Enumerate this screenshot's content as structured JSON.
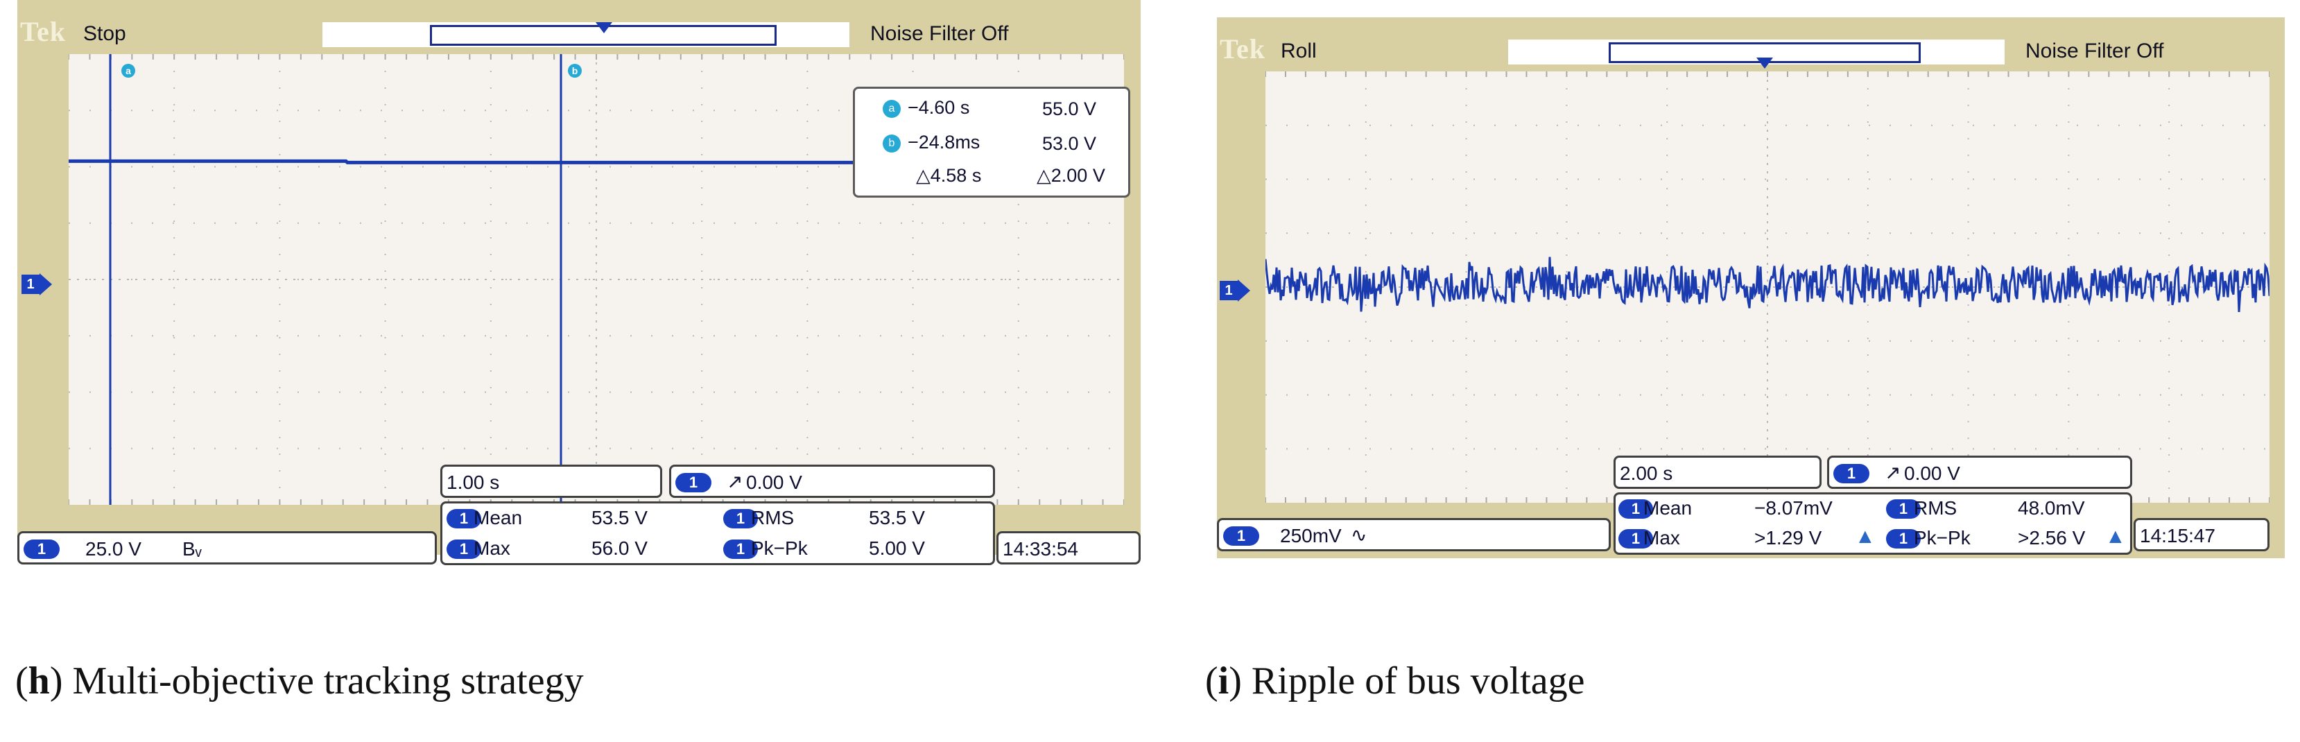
{
  "colors": {
    "bezel": "#d8d0a2",
    "screen_bg": "#f6f3ef",
    "trace": "#1a3ab0",
    "cursor_tag": "#27a9d6",
    "channel_badge": "#1a40c0"
  },
  "figure_h": {
    "caption_letter": "h",
    "caption_text": " Multi-objective tracking strategy",
    "logo": "Tek",
    "run_state": "Stop",
    "noise_filter": "Noise Filter Off",
    "channel_marker": "1",
    "cursors": {
      "a_tag": "a",
      "b_tag": "b",
      "a_time": "−4.60 s",
      "a_voltage": "55.0 V",
      "b_time": "−24.8ms",
      "b_voltage": "53.0 V",
      "delta_time": "△4.58 s",
      "delta_voltage": "△2.00 V"
    },
    "timebase": "1.00 s",
    "trigger": {
      "channel": "1",
      "symbol": "↗",
      "level": "0.00 V"
    },
    "channel_setting": {
      "channel": "1",
      "scale": "25.0 V",
      "bw": "Bᵥ"
    },
    "measurements": {
      "mean_label": "Mean",
      "mean_value": "53.5 V",
      "max_label": "Max",
      "max_value": "56.0 V",
      "rms_label": "RMS",
      "rms_value": "53.5 V",
      "pkpk_label": "Pk−Pk",
      "pkpk_value": "5.00 V"
    },
    "clock": "14:33:54",
    "trace_level_divisions": 2.1
  },
  "figure_i": {
    "caption_letter": "i",
    "caption_text": " Ripple of bus voltage",
    "logo": "Tek",
    "run_state": "Roll",
    "noise_filter": "Noise Filter Off",
    "channel_marker": "1",
    "timebase": "2.00 s",
    "trigger": {
      "channel": "1",
      "symbol": "↗",
      "level": "0.00 V"
    },
    "channel_setting": {
      "channel": "1",
      "scale": "250mV",
      "coupling": "∿"
    },
    "measurements": {
      "mean_label": "Mean",
      "mean_value": "−8.07mV",
      "max_label": "Max",
      "max_value": ">1.29 V",
      "rms_label": "RMS",
      "rms_value": "48.0mV",
      "pkpk_label": "Pk−Pk",
      "pkpk_value": ">2.56 V",
      "warning_icon": "▲"
    },
    "clock": "14:15:47",
    "ripple_amplitude_divisions": 0.35
  }
}
